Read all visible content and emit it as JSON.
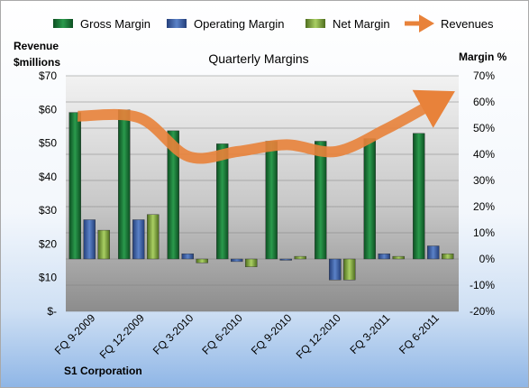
{
  "chart_data": {
    "type": "bar",
    "title": "Quarterly Margins",
    "left_axis_label_line1": "Revenue",
    "left_axis_label_line2": "$millions",
    "right_axis_label": "Margin %",
    "company": "S1 Corporation",
    "categories": [
      "FQ 9-2009",
      "FQ 12-2009",
      "FQ 3-2010",
      "FQ 6-2010",
      "FQ 9-2010",
      "FQ 12-2010",
      "FQ 3-2011",
      "FQ 6-2011"
    ],
    "series": [
      {
        "name": "Gross Margin",
        "axis": "right",
        "kind": "bar",
        "color": "#1e7a3a",
        "values": [
          56,
          57,
          49,
          44,
          45,
          45,
          46,
          48
        ]
      },
      {
        "name": "Operating Margin",
        "axis": "right",
        "kind": "bar",
        "color": "#3e64ad",
        "values": [
          15,
          15,
          2,
          -1,
          -0.5,
          -8,
          2,
          5
        ]
      },
      {
        "name": "Net Margin",
        "axis": "right",
        "kind": "bar",
        "color": "#8db34a",
        "values": [
          11,
          17,
          -1.5,
          -3,
          1,
          -8,
          1,
          2
        ]
      },
      {
        "name": "Revenues",
        "axis": "left",
        "kind": "line",
        "color": "#e8823a",
        "values": [
          58,
          57.5,
          46,
          47.5,
          49.5,
          47.5,
          54,
          62
        ]
      }
    ],
    "left_ylim": [
      0,
      70
    ],
    "left_ticks": [
      "$-",
      "$10",
      "$20",
      "$30",
      "$40",
      "$50",
      "$60",
      "$70"
    ],
    "right_ylim": [
      -20,
      70
    ],
    "right_ticks": [
      "-20%",
      "-10%",
      "0%",
      "10%",
      "20%",
      "30%",
      "40%",
      "50%",
      "60%",
      "70%"
    ],
    "grid": true,
    "legend_position": "top"
  }
}
